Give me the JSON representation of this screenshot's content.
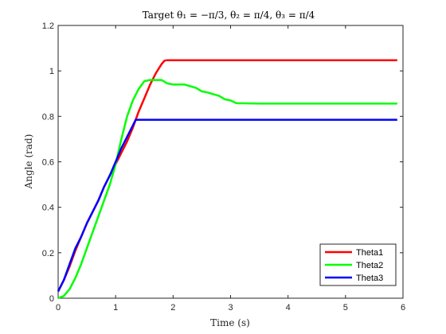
{
  "chart_data": {
    "type": "line",
    "title": "Target θ₁ = −π/3, θ₂ = π/4, θ₃ = π/4",
    "xlabel": "Time (s)",
    "ylabel": "Angle (rad)",
    "xlim": [
      0,
      6
    ],
    "ylim": [
      0,
      1.2
    ],
    "xticks": [
      "0",
      "1",
      "2",
      "3",
      "4",
      "5",
      "6"
    ],
    "yticks": [
      "0",
      "0.2",
      "0.4",
      "0.6",
      "0.8",
      "1",
      "1.2"
    ],
    "grid": false,
    "legend_location": "bottom-right",
    "series": [
      {
        "name": "Theta1",
        "color": "#ff0000",
        "x": [
          0,
          0.1,
          0.2,
          0.3,
          0.4,
          0.5,
          0.6,
          0.7,
          0.8,
          0.9,
          1.0,
          1.1,
          1.2,
          1.3,
          1.4,
          1.5,
          1.6,
          1.7,
          1.8,
          1.85,
          1.9,
          2.0,
          3.0,
          4.0,
          5.0,
          5.9
        ],
        "y": [
          0.03,
          0.08,
          0.14,
          0.21,
          0.27,
          0.33,
          0.38,
          0.43,
          0.49,
          0.54,
          0.59,
          0.64,
          0.69,
          0.75,
          0.82,
          0.88,
          0.94,
          0.99,
          1.03,
          1.045,
          1.047,
          1.047,
          1.047,
          1.047,
          1.047,
          1.047
        ]
      },
      {
        "name": "Theta2",
        "color": "#00ff00",
        "x": [
          0,
          0.1,
          0.2,
          0.3,
          0.4,
          0.5,
          0.6,
          0.7,
          0.8,
          0.9,
          1.0,
          1.1,
          1.2,
          1.3,
          1.4,
          1.5,
          1.6,
          1.7,
          1.8,
          1.9,
          2.0,
          2.2,
          2.4,
          2.5,
          2.6,
          2.8,
          2.9,
          3.0,
          3.1,
          3.5,
          4.0,
          5.0,
          5.9
        ],
        "y": [
          0.0,
          0.01,
          0.04,
          0.09,
          0.15,
          0.22,
          0.29,
          0.36,
          0.43,
          0.5,
          0.59,
          0.7,
          0.8,
          0.87,
          0.92,
          0.955,
          0.96,
          0.96,
          0.96,
          0.945,
          0.94,
          0.94,
          0.925,
          0.91,
          0.905,
          0.89,
          0.875,
          0.87,
          0.858,
          0.856,
          0.856,
          0.856,
          0.856
        ]
      },
      {
        "name": "Theta3",
        "color": "#0000ff",
        "x": [
          0,
          0.1,
          0.2,
          0.3,
          0.4,
          0.5,
          0.6,
          0.7,
          0.8,
          0.9,
          1.0,
          1.1,
          1.2,
          1.3,
          1.35,
          1.4,
          2.0,
          3.0,
          4.0,
          5.0,
          5.9
        ],
        "y": [
          0.03,
          0.08,
          0.15,
          0.22,
          0.27,
          0.33,
          0.38,
          0.43,
          0.49,
          0.54,
          0.6,
          0.66,
          0.71,
          0.76,
          0.785,
          0.785,
          0.785,
          0.785,
          0.785,
          0.785,
          0.785
        ]
      }
    ]
  }
}
